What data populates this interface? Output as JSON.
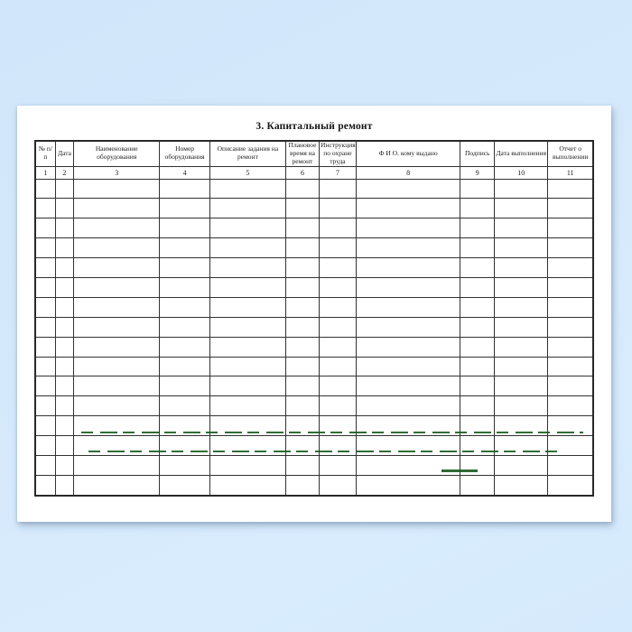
{
  "document": {
    "title": "3. Капитальный ремонт"
  },
  "table": {
    "columns": [
      {
        "label": "№ п/п",
        "number": "1"
      },
      {
        "label": "Дата",
        "number": "2"
      },
      {
        "label": "Наименование оборудования",
        "number": "3"
      },
      {
        "label": "Номер оборудования",
        "number": "4"
      },
      {
        "label": "Описание задания на ремонт",
        "number": "5"
      },
      {
        "label": "Плановое время на ремонт",
        "number": "6"
      },
      {
        "label": "Инструкция по охране труда",
        "number": "7"
      },
      {
        "label": "Ф И О. кому выдано",
        "number": "8"
      },
      {
        "label": "Подпись",
        "number": "9"
      },
      {
        "label": "Дата выполнения",
        "number": "10"
      },
      {
        "label": "Отчет о выполнении",
        "number": "11"
      }
    ],
    "empty_row_count": 16
  },
  "watermark": {
    "description": "faint dark-green dashed scan marks over lower rows",
    "color": "#155a1b"
  },
  "colors": {
    "background_blue": "#d5e9fc",
    "page_white": "#ffffff",
    "grid_line": "#323232",
    "text": "#1c1c1c"
  }
}
